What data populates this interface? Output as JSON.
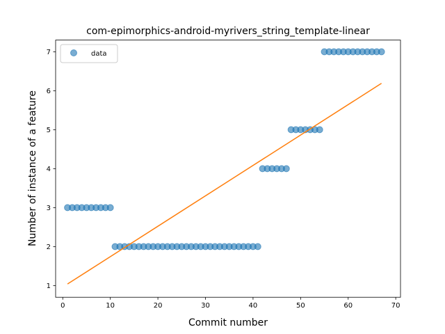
{
  "chart_data": {
    "type": "scatter",
    "title": "com-epimorphics-android-myrivers_string_template-linear",
    "xlabel": "Commit number",
    "ylabel": "Number of instance of a feature",
    "xlim": [
      -1.5,
      71
    ],
    "ylim": [
      0.7,
      7.3
    ],
    "xticks": [
      0,
      10,
      20,
      30,
      40,
      50,
      60,
      70
    ],
    "yticks": [
      1,
      2,
      3,
      4,
      5,
      6,
      7
    ],
    "grid": false,
    "legend_position": "top-left",
    "series": [
      {
        "name": "data",
        "kind": "scatter",
        "color": "#1f77b4",
        "x": [
          1,
          2,
          3,
          4,
          5,
          6,
          7,
          8,
          9,
          10,
          11,
          12,
          13,
          14,
          15,
          16,
          17,
          18,
          19,
          20,
          21,
          22,
          23,
          24,
          25,
          26,
          27,
          28,
          29,
          30,
          31,
          32,
          33,
          34,
          35,
          36,
          37,
          38,
          39,
          40,
          41,
          42,
          43,
          44,
          45,
          46,
          47,
          48,
          49,
          50,
          51,
          52,
          53,
          54,
          55,
          56,
          57,
          58,
          59,
          60,
          61,
          62,
          63,
          64,
          65,
          66,
          67
        ],
        "y": [
          3,
          3,
          3,
          3,
          3,
          3,
          3,
          3,
          3,
          3,
          2,
          2,
          2,
          2,
          2,
          2,
          2,
          2,
          2,
          2,
          2,
          2,
          2,
          2,
          2,
          2,
          2,
          2,
          2,
          2,
          2,
          2,
          2,
          2,
          2,
          2,
          2,
          2,
          2,
          2,
          2,
          4,
          4,
          4,
          4,
          4,
          4,
          5,
          5,
          5,
          5,
          5,
          5,
          5,
          7,
          7,
          7,
          7,
          7,
          7,
          7,
          7,
          7,
          7,
          7,
          7,
          7
        ]
      },
      {
        "kind": "line",
        "color": "#ff7f0e",
        "x": [
          1,
          67
        ],
        "y": [
          1.04,
          6.19
        ]
      }
    ]
  }
}
